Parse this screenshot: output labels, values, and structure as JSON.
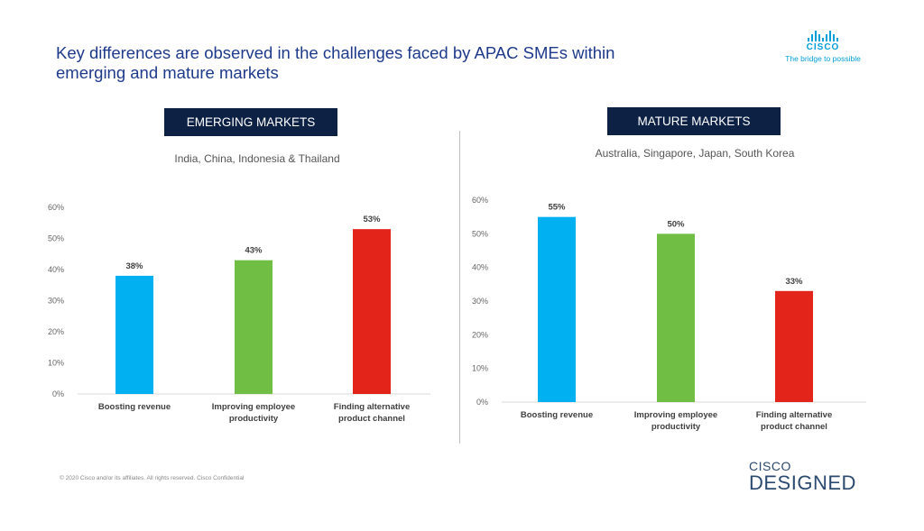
{
  "title": "Key differences are observed in the challenges faced by APAC SMEs within emerging and mature markets",
  "logo": {
    "word": "CISCO",
    "tagline": "The bridge to possible"
  },
  "brand_color": "#049fd9",
  "sections": [
    {
      "label": "EMERGING MARKETS",
      "subtitle": "India, China, Indonesia & Thailand"
    },
    {
      "label": "MATURE MARKETS",
      "subtitle": "Australia, Singapore, Japan, South Korea"
    }
  ],
  "chart_data": [
    {
      "type": "bar",
      "title": "EMERGING MARKETS",
      "categories": [
        [
          "Boosting revenue"
        ],
        [
          "Improving employee",
          "productivity"
        ],
        [
          "Finding alternative",
          "product channel"
        ]
      ],
      "values": [
        38,
        43,
        53
      ],
      "value_labels": [
        "38%",
        "43%",
        "53%"
      ],
      "colors": [
        "#00b0f0",
        "#70bf44",
        "#e3241b"
      ],
      "ylim": [
        0,
        60
      ],
      "yticks": [
        "0%",
        "10%",
        "20%",
        "30%",
        "40%",
        "50%",
        "60%"
      ],
      "grid": false
    },
    {
      "type": "bar",
      "title": "MATURE MARKETS",
      "categories": [
        [
          "Boosting revenue"
        ],
        [
          "Improving employee",
          "productivity"
        ],
        [
          "Finding alternative",
          "product channel"
        ]
      ],
      "values": [
        55,
        50,
        33
      ],
      "value_labels": [
        "55%",
        "50%",
        "33%"
      ],
      "colors": [
        "#00b0f0",
        "#70bf44",
        "#e3241b"
      ],
      "ylim": [
        0,
        60
      ],
      "yticks": [
        "0%",
        "10%",
        "20%",
        "30%",
        "40%",
        "50%",
        "60%"
      ],
      "grid": false
    }
  ],
  "footer": "© 2020 Cisco and/or its affiliates. All rights reserved. Cisco Confidential",
  "designed_logo": {
    "top": "CISCO",
    "bottom": "DESIGNED"
  }
}
